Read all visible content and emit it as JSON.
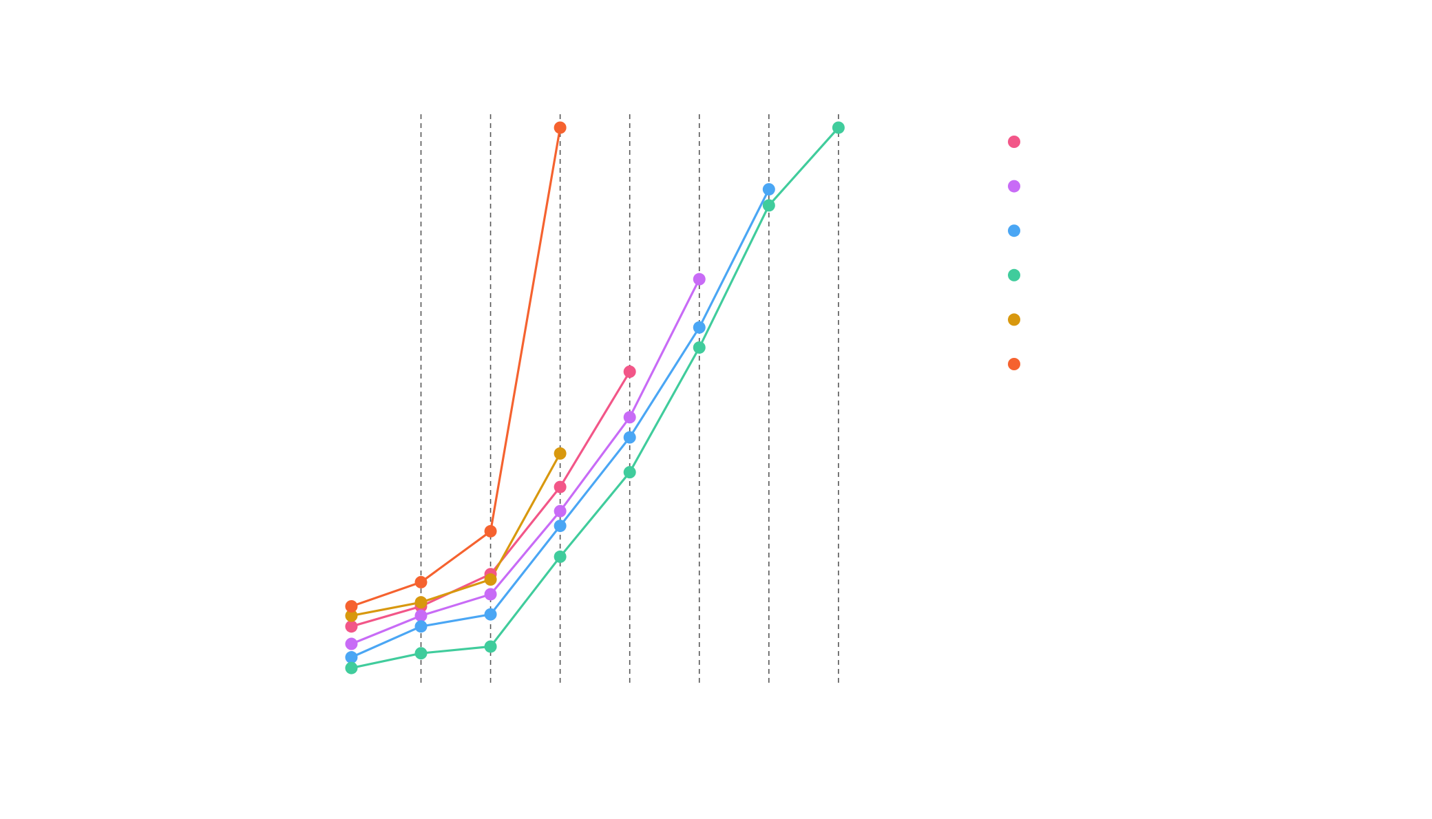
{
  "chart_data": {
    "type": "line",
    "title": "",
    "xlabel": "",
    "ylabel": "",
    "x": [
      0,
      1,
      2,
      3,
      4,
      5,
      6,
      7
    ],
    "xlim": [
      -0.4,
      7.1
    ],
    "ylim": [
      -0.2,
      4.05
    ],
    "grid": "vertical-dashed",
    "legend_placement": "right",
    "series": [
      {
        "color": "#f25688",
        "x": [
          0,
          1,
          2,
          3,
          4
        ],
        "values": [
          0.23,
          0.38,
          0.62,
          1.27,
          2.13
        ]
      },
      {
        "color": "#c86bf6",
        "x": [
          0,
          1,
          2,
          3,
          4,
          5
        ],
        "values": [
          0.1,
          0.31,
          0.47,
          1.09,
          1.79,
          2.82
        ]
      },
      {
        "color": "#4aa6f4",
        "x": [
          0,
          1,
          2,
          3,
          4,
          5,
          6
        ],
        "values": [
          0.0,
          0.23,
          0.32,
          0.98,
          1.64,
          2.46,
          3.49
        ]
      },
      {
        "color": "#40cc9c",
        "x": [
          0,
          1,
          2,
          3,
          4,
          5,
          6,
          7
        ],
        "values": [
          -0.08,
          0.03,
          0.08,
          0.75,
          1.38,
          2.31,
          3.37,
          3.95
        ]
      },
      {
        "color": "#d8980e",
        "x": [
          0,
          1,
          2,
          3
        ],
        "values": [
          0.31,
          0.41,
          0.58,
          1.52
        ]
      },
      {
        "color": "#f5622f",
        "x": [
          0,
          1,
          2,
          3
        ],
        "values": [
          0.38,
          0.56,
          0.94,
          3.95
        ]
      }
    ]
  }
}
